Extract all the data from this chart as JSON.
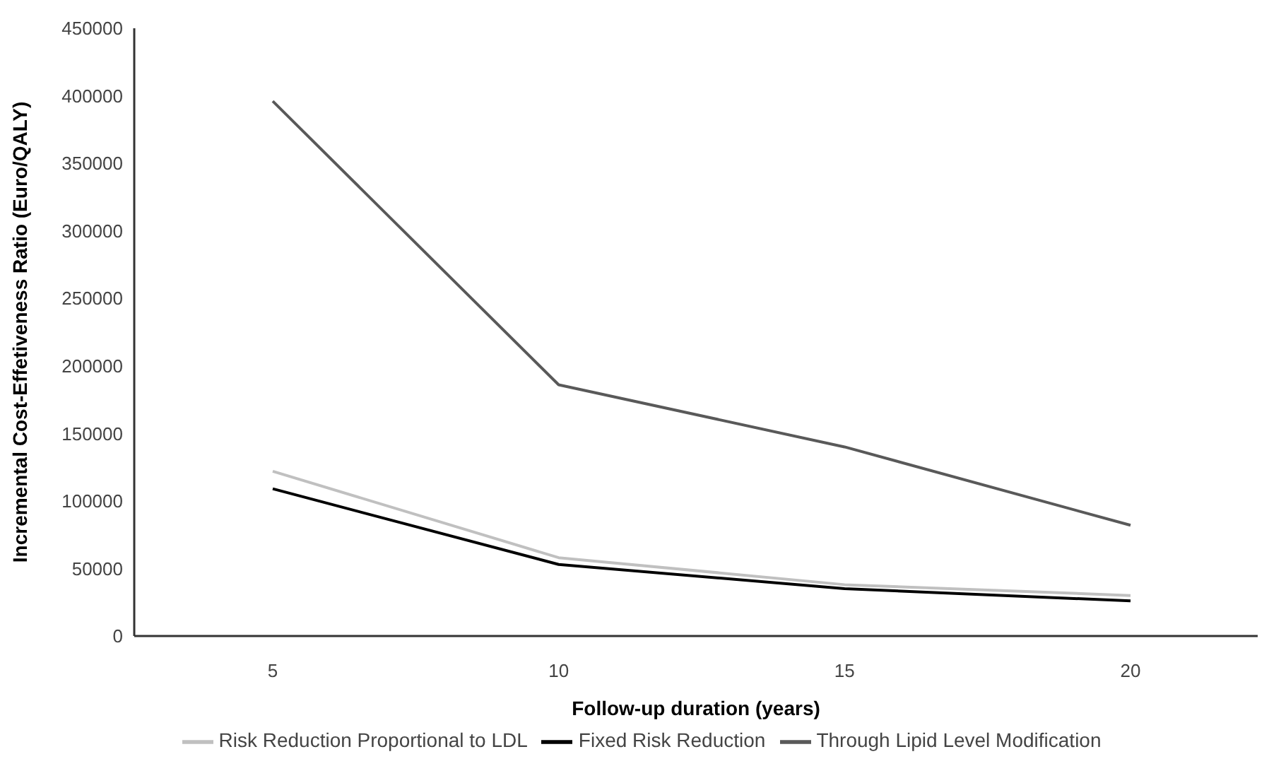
{
  "chart_data": {
    "type": "line",
    "xlabel": "Follow-up duration (years)",
    "ylabel": "Incremental Cost-Effetiveness Ratio (Euro/QALY)",
    "categories": [
      "5",
      "10",
      "15",
      "20"
    ],
    "series": [
      {
        "name": "Risk Reduction Proportional to LDL",
        "color": "#c0c0c0",
        "values": [
          122000,
          58000,
          38000,
          30000
        ]
      },
      {
        "name": "Fixed Risk Reduction",
        "color": "#000000",
        "values": [
          109000,
          53000,
          35000,
          26000
        ]
      },
      {
        "name": "Through Lipid Level Modification",
        "color": "#595959",
        "values": [
          396000,
          186000,
          140000,
          82000
        ]
      }
    ],
    "ylim": [
      0,
      450000
    ],
    "yticks": [
      0,
      50000,
      100000,
      150000,
      200000,
      250000,
      300000,
      350000,
      400000,
      450000
    ],
    "grid": false,
    "legend": "bottom",
    "marker": "none",
    "line_style": "solid"
  }
}
